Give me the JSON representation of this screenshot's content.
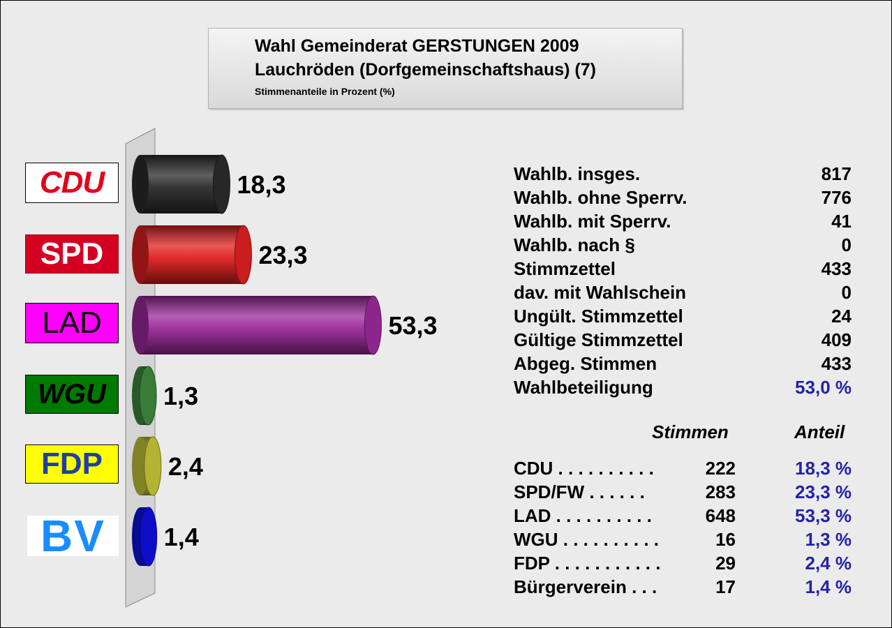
{
  "header": {
    "title": "Wahl Gemeinderat GERSTUNGEN 2009",
    "subtitle": "Lauchröden (Dorfgemeinschaftshaus) (7)",
    "note": "Stimmenanteile in Prozent (%)"
  },
  "chart_data": {
    "type": "bar",
    "orientation": "horizontal",
    "categories": [
      "CDU",
      "SPD",
      "LAD",
      "WGU",
      "FDP",
      "BV"
    ],
    "values": [
      18.3,
      23.3,
      53.3,
      1.3,
      2.4,
      1.4
    ],
    "value_labels": [
      "18,3",
      "23,3",
      "53,3",
      "1,3",
      "2,4",
      "1,4"
    ],
    "colors": [
      "#2b2b2b",
      "#e02020",
      "#9c2a9c",
      "#3e8a3e",
      "#c8c83a",
      "#1010e0"
    ],
    "legend": "party logos on left"
  },
  "logos": [
    {
      "text": "CDU",
      "name": "cdu"
    },
    {
      "text": "SPD",
      "name": "spd"
    },
    {
      "text": "LAD",
      "name": "lad"
    },
    {
      "text": "WGU",
      "name": "wgu"
    },
    {
      "text": "FDP",
      "name": "fdp"
    },
    {
      "text": "BV",
      "name": "bv"
    }
  ],
  "stats": [
    {
      "label": "Wahlb. insges.",
      "value": "817"
    },
    {
      "label": "Wahlb. ohne Sperrv.",
      "value": "776"
    },
    {
      "label": "Wahlb. mit Sperrv.",
      "value": "41"
    },
    {
      "label": "Wahlb. nach §",
      "value": "0"
    },
    {
      "label": "Stimmzettel",
      "value": "433"
    },
    {
      "label": "dav. mit Wahlschein",
      "value": "0"
    },
    {
      "label": "Ungült. Stimmzettel",
      "value": "24"
    },
    {
      "label": "Gültige Stimmzettel",
      "value": "409"
    },
    {
      "label": "Abgeg. Stimmen",
      "value": "433"
    },
    {
      "label": "Wahlbeteiligung",
      "value": "53,0 %"
    }
  ],
  "results_header": {
    "votes": "Stimmen",
    "share": "Anteil"
  },
  "results": [
    {
      "party": "CDU . . . . . . . . . .",
      "votes": "222",
      "share": "18,3 %"
    },
    {
      "party": "SPD/FW  . . . . . .",
      "votes": "283",
      "share": "23,3 %"
    },
    {
      "party": "LAD . . . . . . . . . .",
      "votes": "648",
      "share": "53,3 %"
    },
    {
      "party": "WGU . . . . . . . . . .",
      "votes": "16",
      "share": "1,3 %"
    },
    {
      "party": "FDP . . . . . . . . . . .",
      "votes": "29",
      "share": "2,4 %"
    },
    {
      "party": "Bürgerverein  . . .",
      "votes": "17",
      "share": "1,4 %"
    }
  ]
}
